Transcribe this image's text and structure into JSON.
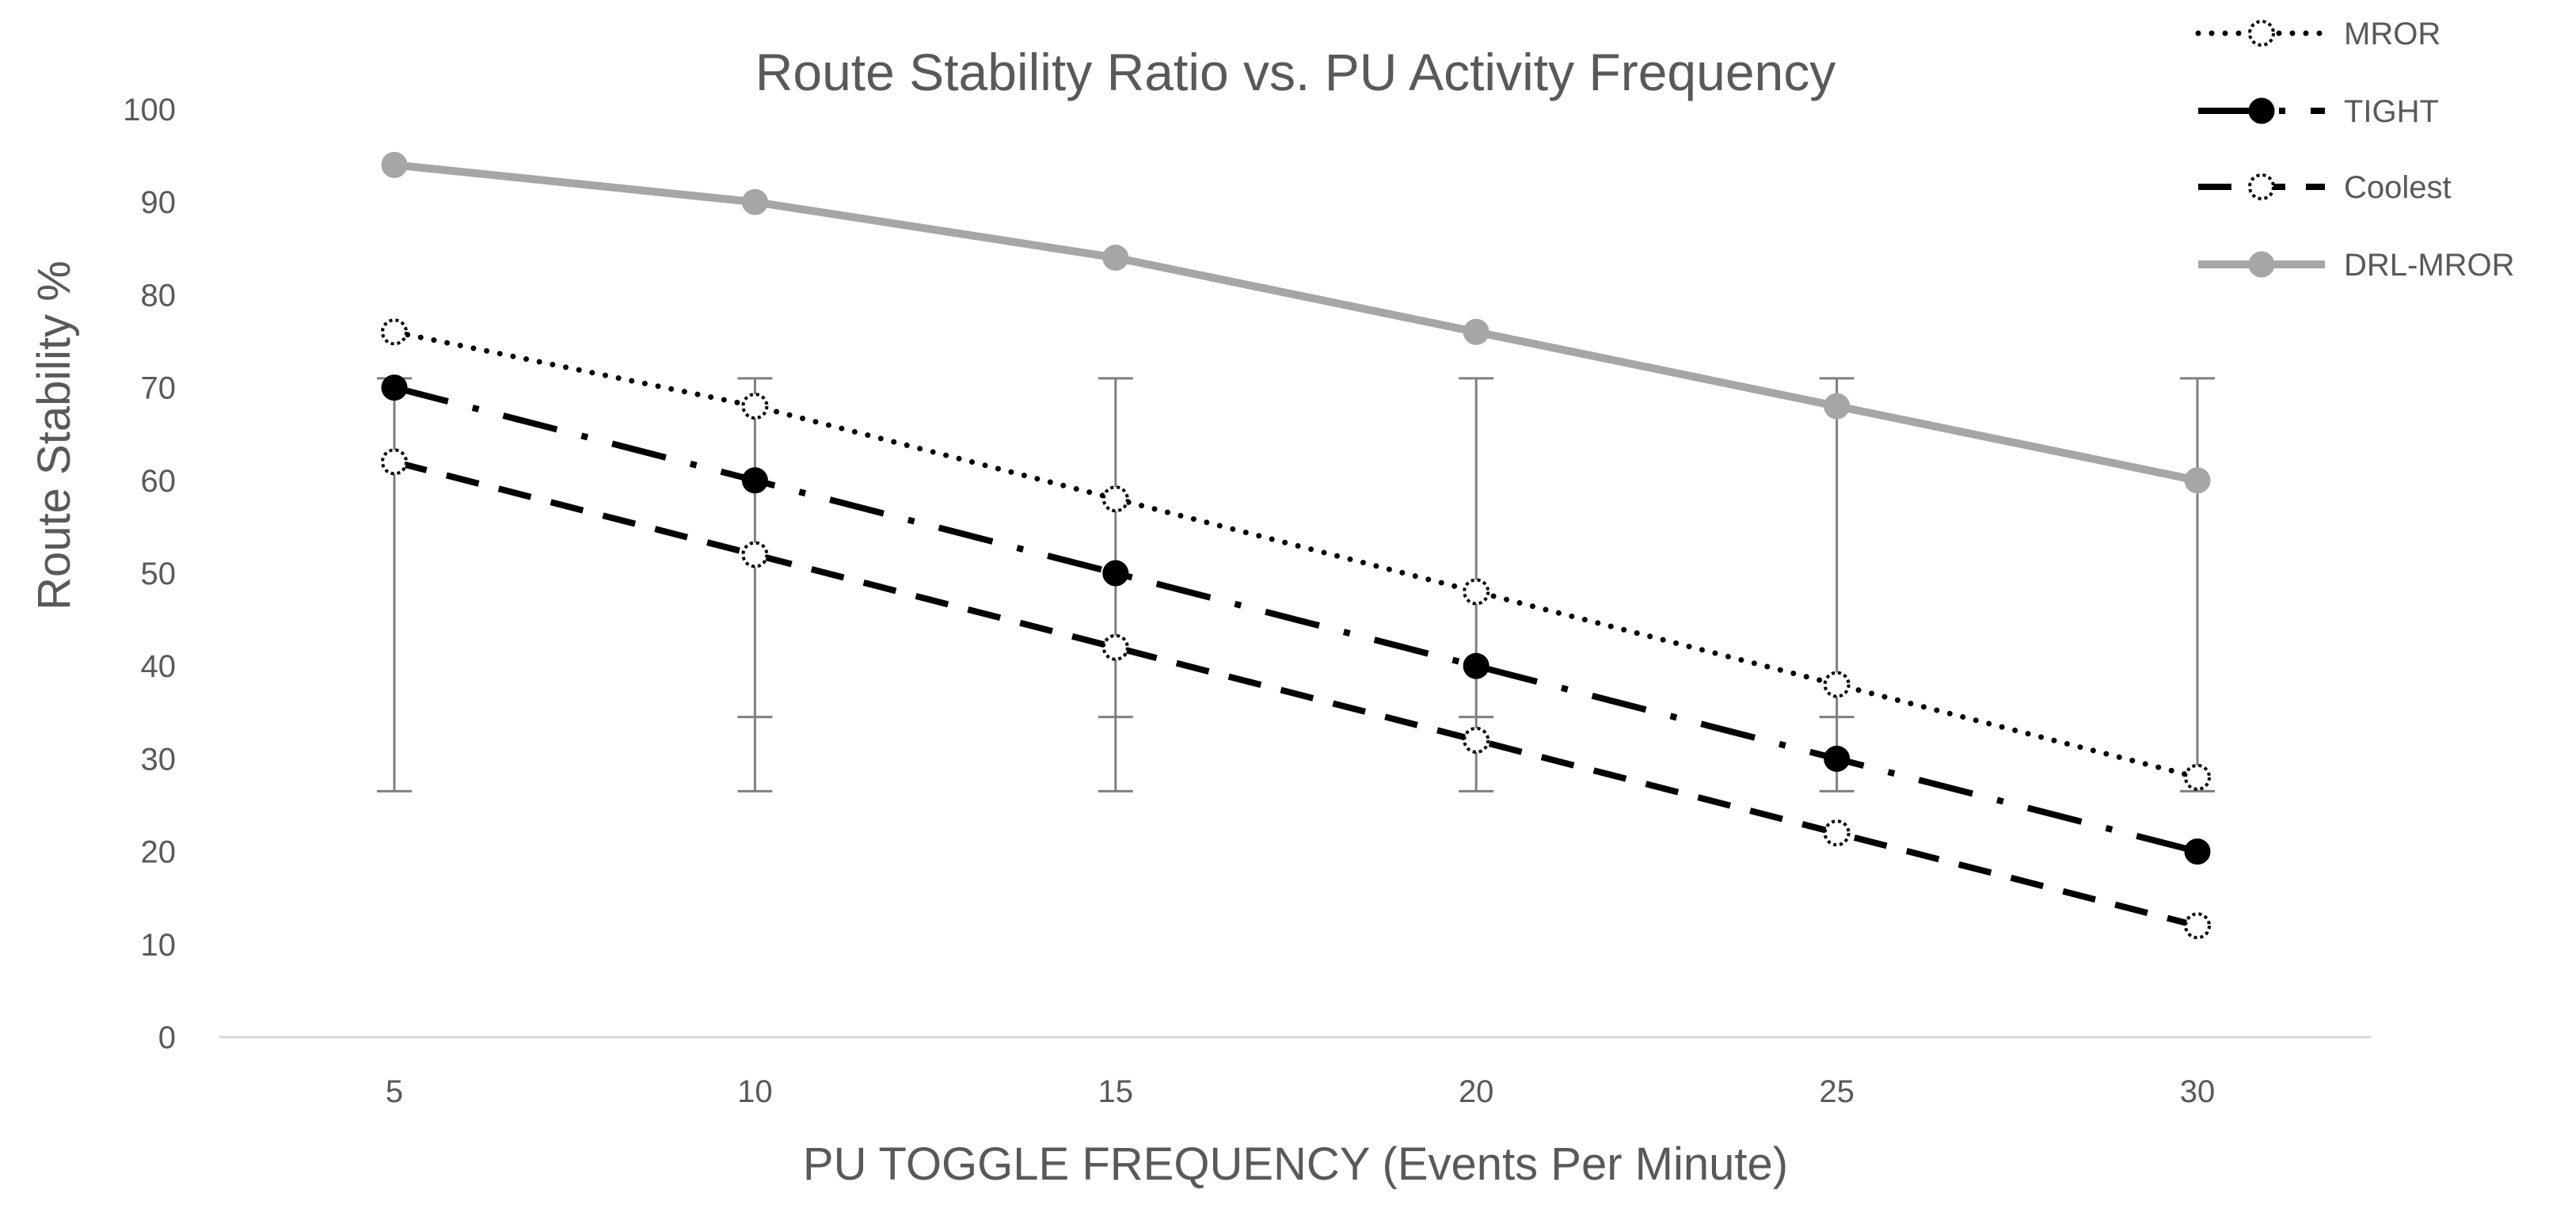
{
  "chart_data": {
    "type": "line",
    "title": "Route Stability Ratio vs. PU Activity Frequency",
    "xlabel": "PU TOGGLE FREQUENCY (Events Per Minute)",
    "ylabel": "Route Stability %",
    "x": [
      5,
      10,
      15,
      20,
      25,
      30
    ],
    "x_tick_labels": [
      "5",
      "10",
      "15",
      "20",
      "25",
      "30"
    ],
    "ylim": [
      0,
      100
    ],
    "y_ticks": [
      0,
      10,
      20,
      30,
      40,
      50,
      60,
      70,
      80,
      90,
      100
    ],
    "y_tick_labels": [
      "0",
      "10",
      "20",
      "30",
      "40",
      "50",
      "60",
      "70",
      "80",
      "90",
      "100"
    ],
    "grid": false,
    "legend_position": "top-right",
    "error_bars": {
      "lower": 26.5,
      "upper": 71
    },
    "series": [
      {
        "name": "MROR",
        "values": [
          76,
          68,
          58,
          48,
          38,
          28
        ],
        "color": "#000000",
        "line_style": "dotted",
        "marker": "open-circle"
      },
      {
        "name": "TIGHT",
        "values": [
          70,
          60,
          50,
          40,
          30,
          20
        ],
        "color": "#000000",
        "line_style": "dash-dot",
        "marker": "filled-circle"
      },
      {
        "name": "Coolest",
        "values": [
          62,
          52,
          42,
          32,
          22,
          12
        ],
        "color": "#000000",
        "line_style": "dashed",
        "marker": "open-circle"
      },
      {
        "name": "DRL-MROR",
        "values": [
          94,
          90,
          84,
          76,
          68,
          60
        ],
        "color": "#a6a6a6",
        "line_style": "solid",
        "marker": "filled-circle"
      }
    ]
  }
}
